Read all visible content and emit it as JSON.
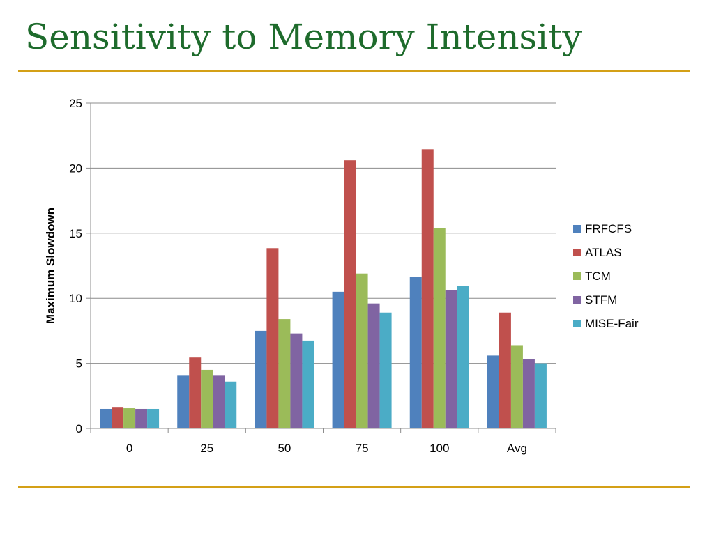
{
  "slide": {
    "title": "Sensitivity to Memory Intensity",
    "accent_color": "#d4a017",
    "title_color": "#1e6b2c"
  },
  "chart_data": {
    "type": "bar",
    "title": "",
    "xlabel": "",
    "ylabel": "Maximum Slowdown",
    "ylim": [
      0,
      25
    ],
    "yticks": [
      "0",
      "5",
      "10",
      "15",
      "20",
      "25"
    ],
    "categories": [
      "0",
      "25",
      "50",
      "75",
      "100",
      "Avg"
    ],
    "grid": true,
    "legend_position": "right",
    "series": [
      {
        "name": "FRFCFS",
        "color": "#4f81bd",
        "values": [
          1.5,
          4.05,
          7.5,
          10.5,
          11.65,
          5.6
        ]
      },
      {
        "name": "ATLAS",
        "color": "#c0504d",
        "values": [
          1.65,
          5.45,
          13.85,
          20.6,
          21.45,
          8.9
        ]
      },
      {
        "name": "TCM",
        "color": "#9bbb59",
        "values": [
          1.55,
          4.5,
          8.4,
          11.9,
          15.4,
          6.4
        ]
      },
      {
        "name": "STFM",
        "color": "#8064a2",
        "values": [
          1.5,
          4.05,
          7.3,
          9.6,
          10.65,
          5.35
        ]
      },
      {
        "name": "MISE-Fair",
        "color": "#4bacc6",
        "values": [
          1.5,
          3.6,
          6.75,
          8.9,
          10.95,
          5.0
        ]
      }
    ]
  }
}
